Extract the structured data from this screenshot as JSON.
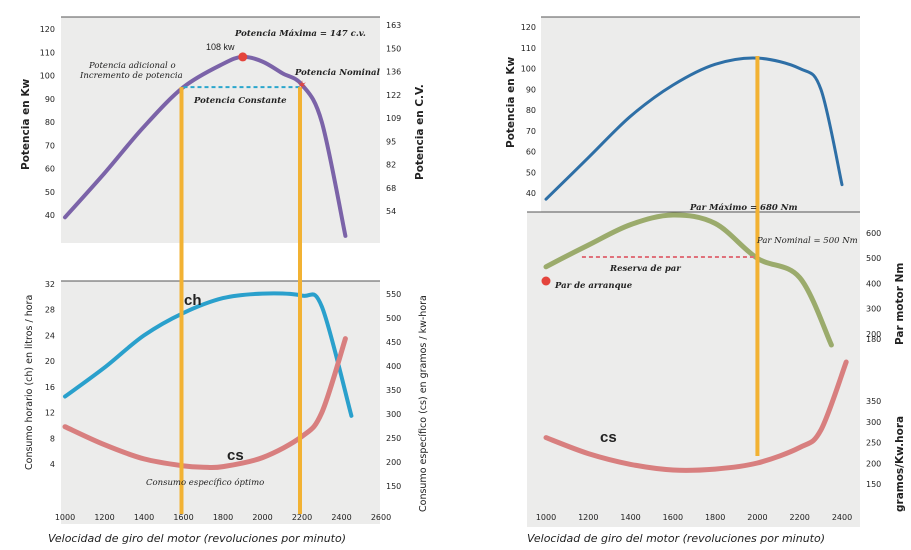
{
  "chart_data": [
    {
      "type": "line",
      "panel": "left-top",
      "ylabel": "Potencia en Kw",
      "ylabel_right": "Potencia en C.V.",
      "yticks": [
        40,
        50,
        60,
        70,
        80,
        90,
        100,
        110,
        120
      ],
      "yticks_right": [
        54,
        68,
        82,
        95,
        109,
        122,
        136,
        150,
        163
      ],
      "xlim": [
        1000,
        2600
      ],
      "ylim": [
        33,
        127
      ],
      "series": [
        {
          "name": "potencia",
          "color": "#7b63a8",
          "x": [
            1000,
            1200,
            1400,
            1600,
            1800,
            1900,
            2000,
            2100,
            2200,
            2300,
            2420
          ],
          "y": [
            39,
            58,
            78,
            95,
            105,
            108,
            106,
            101,
            96,
            80,
            31
          ]
        }
      ],
      "annotations": {
        "peak_label": "108 kw",
        "max_power": "Potencia  Máxima = 147 c.v.",
        "nominal": "Potencia  Nominal",
        "additional": [
          "Potencia adicional o",
          "Incremento de potencia"
        ],
        "constant": "Potencia Constante"
      },
      "markers": [
        {
          "x": 1900,
          "y": 108
        },
        {
          "x": 2200,
          "y": 96
        }
      ],
      "constant_line": {
        "x": [
          1600,
          2200
        ],
        "y": 95
      }
    },
    {
      "type": "line",
      "panel": "left-bottom",
      "ylabel": "Consumo horario (ch) en litros / hora",
      "ylabel_right": "Consumo específico (cs) en gramos / kw-hora",
      "yticks": [
        4,
        8,
        12,
        16,
        20,
        24,
        28,
        32
      ],
      "yticks_right": [
        150,
        200,
        250,
        300,
        350,
        400,
        450,
        500,
        550
      ],
      "xlim": [
        1000,
        2600
      ],
      "ylim": [
        0,
        34
      ],
      "xticks": [
        1000,
        1200,
        1400,
        1600,
        1800,
        2000,
        2200,
        2400,
        2600
      ],
      "xlabel": "Velocidad de giro del motor (revoluciones por minuto)",
      "series": [
        {
          "name": "ch",
          "color": "#2aa0cc",
          "x": [
            1000,
            1200,
            1400,
            1600,
            1800,
            2000,
            2200,
            2300,
            2450
          ],
          "y": [
            14.5,
            19,
            24,
            27.5,
            29.8,
            30.5,
            30.2,
            28.5,
            11.5
          ]
        },
        {
          "name": "cs",
          "color": "#d87f7f",
          "x": [
            1000,
            1200,
            1400,
            1600,
            1700,
            1800,
            2000,
            2200,
            2300,
            2420
          ],
          "y": [
            9.8,
            7,
            4.8,
            3.7,
            3.5,
            3.6,
            5,
            8.3,
            12,
            23.5
          ]
        }
      ],
      "annotations": {
        "optimum": "Consumo específico óptimo"
      }
    },
    {
      "type": "line",
      "panel": "right-top",
      "ylabel": "Potencia en  Kw",
      "yticks": [
        40,
        50,
        60,
        70,
        80,
        90,
        100,
        110,
        120
      ],
      "xlim": [
        1000,
        2400
      ],
      "ylim": [
        36,
        123
      ],
      "series": [
        {
          "name": "potencia",
          "color": "#2e6fa6",
          "x": [
            1000,
            1200,
            1400,
            1600,
            1800,
            2000,
            2200,
            2300,
            2400
          ],
          "y": [
            37,
            57,
            77,
            92,
            102,
            105,
            100,
            90,
            44
          ]
        }
      ]
    },
    {
      "type": "line",
      "panel": "right-bottom",
      "ylabel": "Par motor  Nm",
      "yticks": [
        180,
        200,
        300,
        400,
        500,
        600
      ],
      "xlim": [
        1000,
        2400
      ],
      "series": [
        {
          "name": "par",
          "color": "#9bab6c",
          "x": [
            1000,
            1200,
            1400,
            1600,
            1800,
            2000,
            2200,
            2350
          ],
          "y": [
            465,
            555,
            640,
            680,
            645,
            500,
            420,
            140
          ]
        }
      ],
      "annotations": {
        "max": "Par  Máximo = 680 Nm",
        "nominal": "Par  Nominal = 500 Nm",
        "reserve": "Reserva de par",
        "start": "Par de arranque"
      }
    },
    {
      "type": "line",
      "panel": "right-cs",
      "ylabel": "gramos/Kw.hora",
      "yticks": [
        150,
        200,
        250,
        300,
        350
      ],
      "xticks": [
        1000,
        1200,
        1400,
        1600,
        1800,
        2000,
        2200,
        2400
      ],
      "xlabel": "Velocidad de giro del motor (revoluciones por minuto)",
      "xlim": [
        1000,
        2400
      ],
      "series": [
        {
          "name": "cs",
          "color": "#d87f7f",
          "x": [
            1000,
            1200,
            1400,
            1600,
            1800,
            2000,
            2200,
            2300,
            2420
          ],
          "y": [
            279,
            245,
            222,
            210,
            212,
            225,
            258,
            295,
            440
          ]
        }
      ]
    }
  ],
  "labels": {
    "ch": "ch",
    "cs_left": "cs",
    "cs_right": "cs"
  },
  "colors": {
    "panel": "#ececeb",
    "vline": "#f2b233",
    "constant": "#2aa6cc",
    "reserve": "#e0707a",
    "marker": "#e4443c"
  }
}
